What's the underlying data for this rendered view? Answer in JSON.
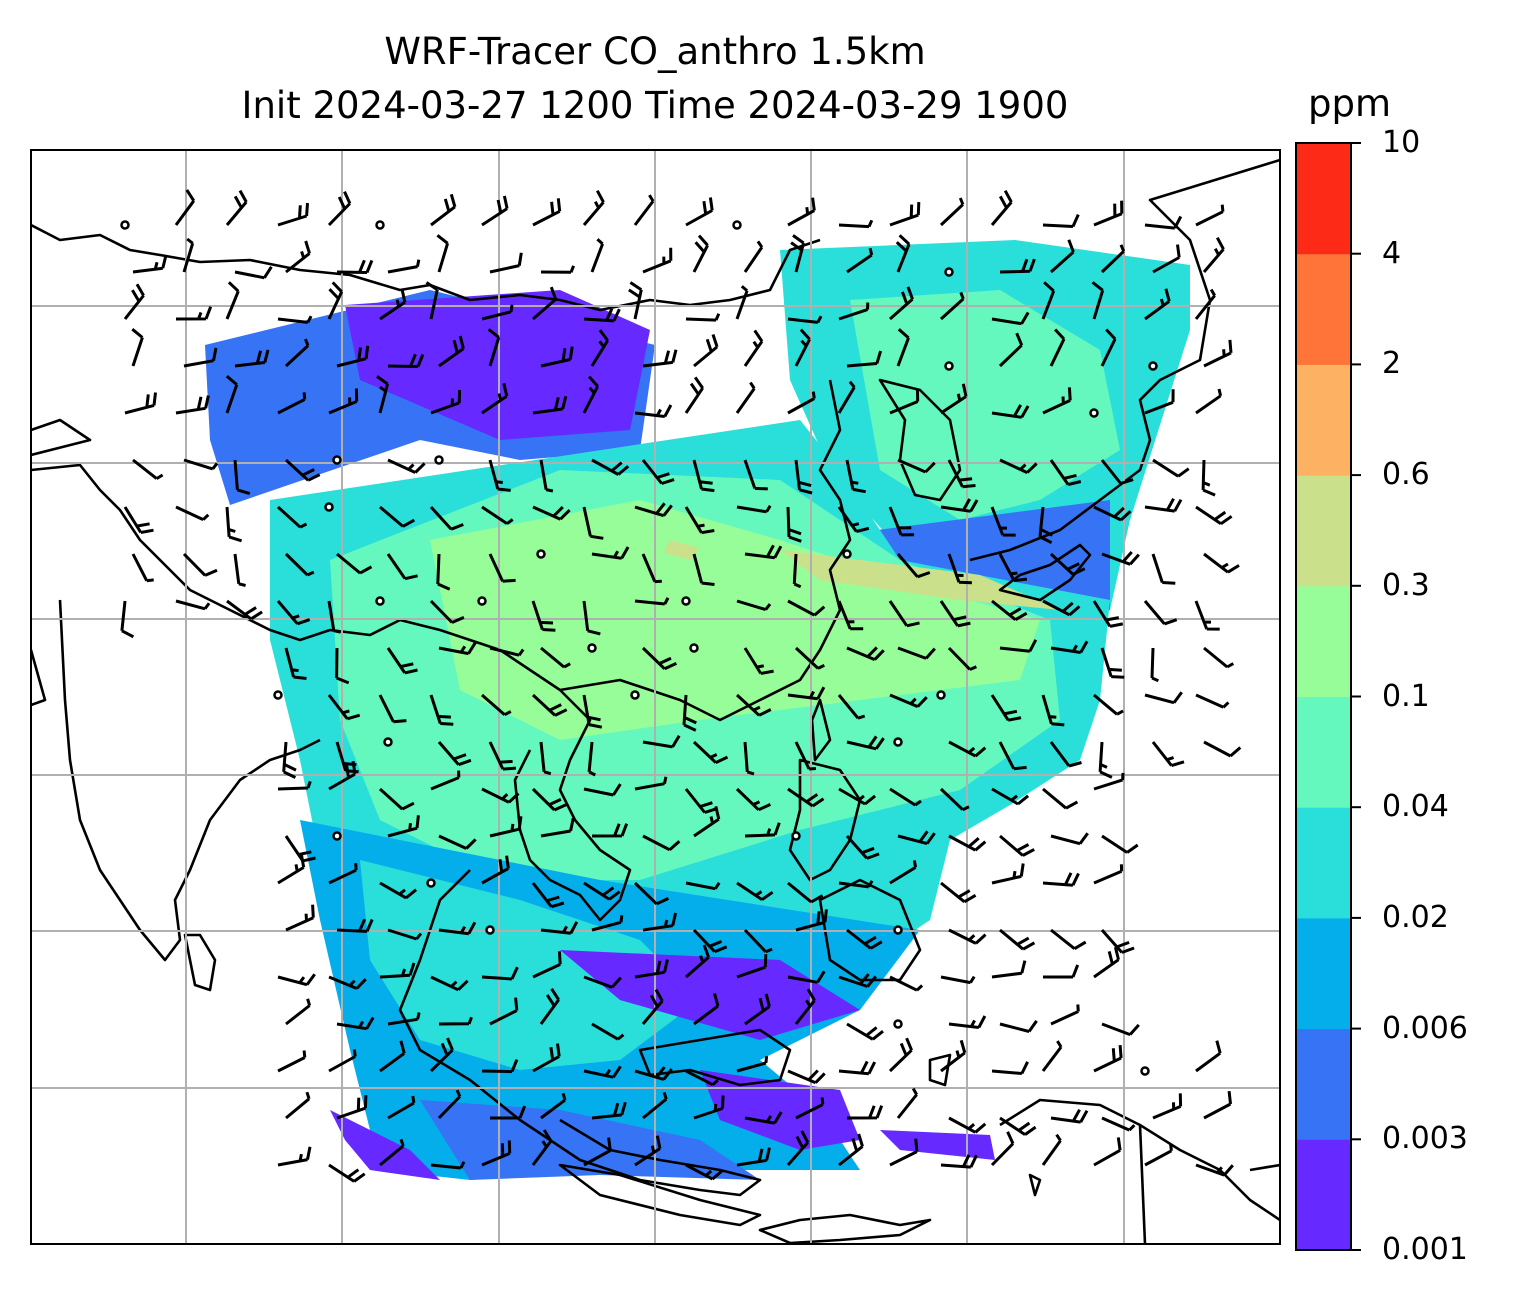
{
  "title": {
    "line1": "WRF-Tracer CO_anthro 1.5km",
    "line2": "Init 2024-03-27 1200 Time 2024-03-29 1900"
  },
  "colorbar": {
    "unit_label": "ppm",
    "levels": [
      "0.001",
      "0.003",
      "0.006",
      "0.02",
      "0.04",
      "0.1",
      "0.3",
      "0.6",
      "2",
      "4",
      "10"
    ],
    "colors": [
      "#6629ff",
      "#3673f5",
      "#04aeea",
      "#2adfd9",
      "#64f8be",
      "#96fd98",
      "#cbe08a",
      "#fcb163",
      "#ff7439",
      "#fd2a18"
    ]
  },
  "map": {
    "projection": "regional",
    "gridlines": true,
    "coastlines": true,
    "wind_barbs": true,
    "calm_circles": true,
    "field_palette_index": {
      "low": 0,
      "mid": 4,
      "high": 7
    }
  }
}
